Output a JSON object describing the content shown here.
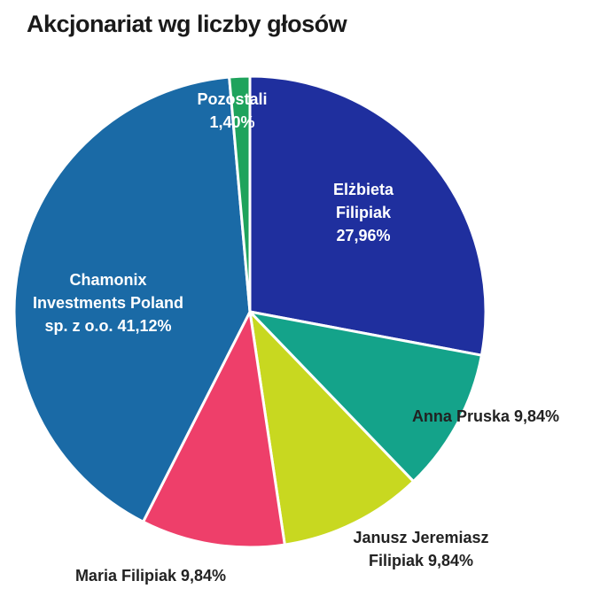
{
  "chart_data": {
    "type": "pie",
    "title": "Akcjonariat wg liczby głosów",
    "categories": [
      "Elżbieta Filipiak",
      "Anna Pruska",
      "Janusz Jeremiasz Filipiak",
      "Maria Filipiak",
      "Chamonix Investments Poland sp. z o.o.",
      "Pozostali"
    ],
    "values": [
      27.96,
      9.84,
      9.84,
      9.84,
      41.12,
      1.4
    ],
    "value_labels": [
      "27,96%",
      "9,84%",
      "9,84%",
      "9,84%",
      "41,12%",
      "1,40%"
    ],
    "colors": [
      "#1f2f9e",
      "#14a38a",
      "#c8d820",
      "#ee3f6a",
      "#1a6aa6",
      "#1fa35c"
    ]
  }
}
